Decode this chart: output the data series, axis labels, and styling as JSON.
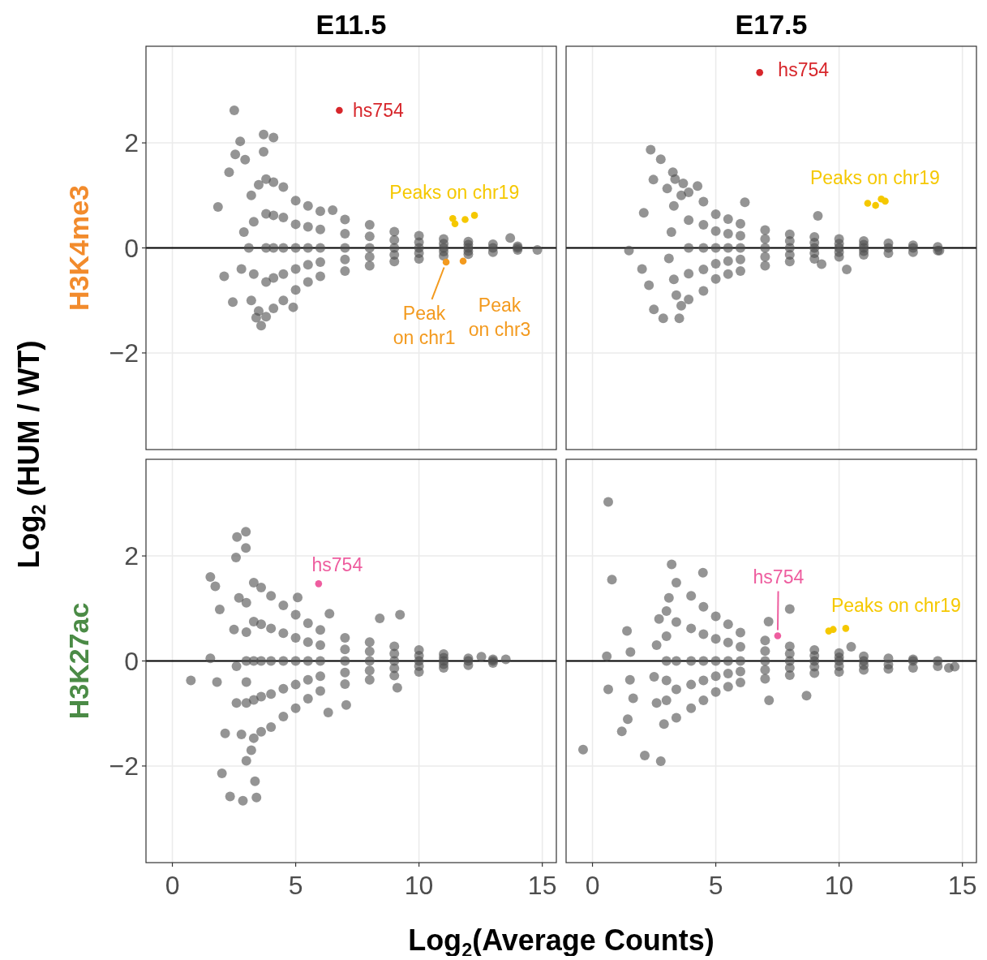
{
  "chart_data": [
    {
      "type": "scatter",
      "title": "E11.5",
      "subtitle": "H3K4me3",
      "ylabel": "Log$_{2}$ (HUM / WT)",
      "xlim": [
        -1.07,
        15.57
      ],
      "ylim": [
        -3.84,
        3.84
      ],
      "xticks": [
        0,
        5,
        10,
        15
      ],
      "yticks": [
        {
          "value": -2,
          "label": "−2"
        },
        0,
        2
      ],
      "grid": true,
      "tick_labels": "y",
      "ref_lines": [
        {
          "axis": "y",
          "value": 0,
          "color": "#000000"
        }
      ],
      "series": [
        {
          "color": "#4d4d4d",
          "x": [
            3.8,
            3.8,
            3.8,
            3.8,
            3.8,
            4.1,
            4.1,
            4.1,
            4.1,
            4.1,
            4.5,
            4.5,
            4.5,
            4.5,
            4.5,
            5,
            5,
            5,
            5,
            5,
            5.5,
            5.5,
            5.5,
            5.5,
            5.5,
            6,
            6,
            6,
            6,
            6,
            7,
            7,
            7,
            7,
            7,
            8,
            8,
            8,
            8,
            8,
            9,
            9,
            9,
            9,
            9,
            10,
            10,
            10,
            10,
            10,
            11,
            11,
            11,
            11,
            11,
            12,
            12,
            12,
            12,
            12,
            13,
            13,
            13,
            14,
            14,
            14,
            3.2,
            3.3,
            3.1,
            3.3,
            3.2,
            3.5,
            3.5,
            2.9,
            2.8,
            2.51,
            3.7,
            4.1,
            2.75,
            2.55,
            2.95,
            3.7,
            1.85,
            2.3,
            2.45,
            2.1,
            3.4,
            3.6,
            4.9,
            6.5,
            13.7,
            14.8
          ],
          "values": [
            1.31,
            0.65,
            0,
            -0.65,
            -1.31,
            1.25,
            0.62,
            0,
            -0.57,
            -1.15,
            1.16,
            0.58,
            0,
            -0.5,
            -1.0,
            0.9,
            0.45,
            0,
            -0.4,
            -0.8,
            0.8,
            0.4,
            0,
            -0.32,
            -0.65,
            0.7,
            0.35,
            0,
            -0.27,
            -0.54,
            0.54,
            0.27,
            0,
            -0.22,
            -0.44,
            0.44,
            0.22,
            0,
            -0.17,
            -0.34,
            0.31,
            0.15,
            0,
            -0.13,
            -0.26,
            0.23,
            0.11,
            0,
            -0.1,
            -0.21,
            0.17,
            0.08,
            0,
            -0.07,
            -0.15,
            0.12,
            0.06,
            0,
            -0.06,
            -0.12,
            0.07,
            0,
            -0.08,
            0.03,
            0,
            -0.04,
            1.0,
            0.5,
            0,
            -0.5,
            -1.0,
            1.2,
            -1.2,
            0.3,
            -0.4,
            2.62,
            2.16,
            2.1,
            2.03,
            1.78,
            1.68,
            1.83,
            0.78,
            1.44,
            -1.03,
            -0.54,
            -1.33,
            -1.48,
            -1.13,
            0.72,
            0.19,
            -0.04
          ]
        },
        {
          "color": "#d7262b",
          "x": [
            6.77
          ],
          "values": [
            2.62
          ]
        },
        {
          "color": "#f5c800",
          "x": [
            11.37,
            11.46,
            11.87,
            12.25
          ],
          "values": [
            0.56,
            0.46,
            0.54,
            0.62
          ]
        },
        {
          "color": "#f39a1e",
          "x": [
            11.1
          ],
          "values": [
            -0.27
          ]
        },
        {
          "color": "#f39a1e",
          "x": [
            11.79
          ],
          "values": [
            -0.25
          ]
        }
      ],
      "annotations": [
        {
          "text": "hs754",
          "x": 6.77,
          "y": 2.62
        },
        {
          "text": "Peaks on chr19",
          "x": 11.37,
          "y": 0.56
        },
        {
          "text": "Peak\non chr1",
          "x": 11.1,
          "y": -0.27
        },
        {
          "text": "Peak\non chr3",
          "x": 11.79,
          "y": -0.25
        }
      ]
    },
    {
      "type": "scatter",
      "title": "E17.5",
      "xlim": [
        -1.07,
        15.57
      ],
      "ylim": [
        -3.84,
        3.84
      ],
      "xticks": [
        0,
        5,
        10,
        15
      ],
      "yticks": [
        -2,
        0,
        2
      ],
      "grid": true,
      "tick_labels": false,
      "ref_lines": [
        {
          "axis": "y",
          "value": 0,
          "color": "#000000"
        }
      ],
      "series": [
        {
          "color": "#4d4d4d",
          "x": [
            3.9,
            3.9,
            3.9,
            3.9,
            3.9,
            4.5,
            4.5,
            4.5,
            4.5,
            4.5,
            5,
            5,
            5,
            5,
            5,
            5.5,
            5.5,
            5.5,
            5.5,
            5.5,
            6,
            6,
            6,
            6,
            6,
            7,
            7,
            7,
            7,
            7,
            8,
            8,
            8,
            8,
            8,
            9,
            9,
            9,
            9,
            9,
            10,
            10,
            10,
            10,
            10,
            11,
            11,
            11,
            11,
            11,
            12,
            12,
            12,
            13,
            13,
            13,
            14,
            14,
            3.3,
            3.2,
            3.1,
            3.3,
            3.4,
            3.6,
            3.6,
            2.36,
            2.77,
            3.26,
            2.47,
            3.35,
            3.03,
            3.68,
            4.26,
            2.08,
            1.48,
            2.01,
            2.29,
            2.49,
            2.87,
            3.52,
            6.18,
            9.14,
            10.31,
            14.07,
            9.29
          ],
          "values": [
            1.06,
            0.53,
            0,
            -0.49,
            -0.98,
            0.88,
            0.44,
            0,
            -0.41,
            -0.82,
            0.64,
            0.32,
            0,
            -0.3,
            -0.59,
            0.55,
            0.27,
            0,
            -0.25,
            -0.5,
            0.46,
            0.23,
            0,
            -0.22,
            -0.44,
            0.34,
            0.17,
            0,
            -0.17,
            -0.34,
            0.26,
            0.13,
            0,
            -0.13,
            -0.26,
            0.21,
            0.1,
            0,
            -0.1,
            -0.21,
            0.17,
            0.08,
            0,
            -0.08,
            -0.17,
            0.13,
            0.06,
            0,
            -0.06,
            -0.13,
            0.09,
            0,
            -0.1,
            0.05,
            0,
            -0.08,
            0.02,
            -0.05,
            0.8,
            0.3,
            -0.2,
            -0.6,
            -0.9,
            1.0,
            -1.1,
            1.87,
            1.69,
            1.44,
            1.3,
            1.31,
            1.13,
            1.23,
            1.18,
            0.67,
            -0.05,
            -0.4,
            -0.71,
            -1.17,
            -1.34,
            -1.34,
            0.87,
            0.61,
            -0.41,
            -0.05,
            -0.31
          ]
        },
        {
          "color": "#d7262b",
          "x": [
            6.78
          ],
          "values": [
            3.34
          ]
        },
        {
          "color": "#f5c800",
          "x": [
            11.16,
            11.48,
            11.71,
            11.87
          ],
          "values": [
            0.85,
            0.81,
            0.93,
            0.89
          ]
        }
      ],
      "annotations": [
        {
          "text": "hs754",
          "x": 6.78,
          "y": 3.34
        },
        {
          "text": "Peaks on chr19",
          "x": 11.16,
          "y": 0.85
        }
      ]
    },
    {
      "type": "scatter",
      "subtitle": "H3K27ac",
      "xlabel": "Log$_{2}$(Average Counts)",
      "xlim": [
        -1.07,
        15.57
      ],
      "ylim": [
        -3.84,
        3.84
      ],
      "xticks": [
        0,
        5,
        10,
        15
      ],
      "yticks": [
        {
          "value": -2,
          "label": "−2"
        },
        0,
        2
      ],
      "grid": true,
      "ref_lines": [
        {
          "axis": "y",
          "value": 0,
          "color": "#000000"
        }
      ],
      "series": [
        {
          "color": "#4d4d4d",
          "x": [
            3.0,
            3.0,
            3.0,
            3.0,
            3.0,
            3.3,
            3.3,
            3.3,
            3.3,
            3.3,
            3.6,
            3.6,
            3.6,
            3.6,
            3.6,
            4,
            4,
            4,
            4,
            4,
            4.5,
            4.5,
            4.5,
            4.5,
            4.5,
            5,
            5,
            5,
            5,
            5,
            5.5,
            5.5,
            5.5,
            5.5,
            5.5,
            6,
            6,
            6,
            6,
            6,
            7,
            7,
            7,
            7,
            7,
            8,
            8,
            8,
            8,
            8,
            9,
            9,
            9,
            9,
            9,
            10,
            10,
            10,
            10,
            10,
            11,
            11,
            11,
            11,
            11,
            12,
            12,
            12,
            13,
            13,
            13,
            2.7,
            2.5,
            2.6,
            2.6,
            2.8,
            3.0,
            3.2,
            2.98,
            2.62,
            2.98,
            2.58,
            1.54,
            1.74,
            1.92,
            5.08,
            6.37,
            8.41,
            9.23,
            0.75,
            1.54,
            1.81,
            2.01,
            2.34,
            2.86,
            3.41,
            3.35,
            2.14,
            7.05,
            6.32,
            9.12,
            13.52,
            12.53
          ],
          "values": [
            1.11,
            0.55,
            0,
            -0.4,
            -0.8,
            1.49,
            0.75,
            0,
            -0.74,
            -1.47,
            1.4,
            0.7,
            0,
            -0.68,
            -1.35,
            1.24,
            0.62,
            0,
            -0.63,
            -1.26,
            1.06,
            0.53,
            0,
            -0.53,
            -1.06,
            0.88,
            0.44,
            0,
            -0.45,
            -0.9,
            0.72,
            0.36,
            0,
            -0.36,
            -0.72,
            0.59,
            0.3,
            0,
            -0.29,
            -0.57,
            0.44,
            0.22,
            0,
            -0.22,
            -0.44,
            0.36,
            0.18,
            0,
            -0.18,
            -0.36,
            0.28,
            0.14,
            0,
            -0.14,
            -0.28,
            0.21,
            0.1,
            0,
            -0.1,
            -0.21,
            0.13,
            0.06,
            0,
            -0.06,
            -0.13,
            0.05,
            0,
            -0.08,
            0.03,
            0,
            -0.04,
            1.2,
            0.6,
            -0.1,
            -0.8,
            -1.4,
            -1.9,
            -1.7,
            2.46,
            2.36,
            2.15,
            1.97,
            1.6,
            1.42,
            0.98,
            1.21,
            0.9,
            0.81,
            0.88,
            -0.37,
            0.05,
            -0.4,
            -2.14,
            -2.58,
            -2.66,
            -2.6,
            -2.29,
            -1.38,
            -0.84,
            -0.98,
            -0.51,
            0.03,
            0.08
          ]
        },
        {
          "color": "#ee5d9f",
          "x": [
            5.93
          ],
          "values": [
            1.47
          ]
        }
      ],
      "annotations": [
        {
          "text": "hs754",
          "x": 5.93,
          "y": 1.47
        }
      ]
    },
    {
      "type": "scatter",
      "xlim": [
        -1.07,
        15.57
      ],
      "ylim": [
        -3.84,
        3.84
      ],
      "xticks": [
        0,
        5,
        10,
        15
      ],
      "yticks": [
        -2,
        0,
        2
      ],
      "grid": true,
      "tick_labels": "x",
      "ref_lines": [
        {
          "axis": "y",
          "value": 0,
          "color": "#000000"
        }
      ],
      "series": [
        {
          "color": "#4d4d4d",
          "x": [
            3.0,
            3.0,
            3.0,
            3.0,
            3.0,
            3.4,
            3.4,
            3.4,
            3.4,
            3.4,
            4,
            4,
            4,
            4,
            4,
            4.5,
            4.5,
            4.5,
            4.5,
            4.5,
            5,
            5,
            5,
            5,
            5,
            5.5,
            5.5,
            5.5,
            5.5,
            5.5,
            6,
            6,
            6,
            6,
            6,
            7,
            7,
            7,
            7,
            7,
            8,
            8,
            8,
            8,
            8,
            9,
            9,
            9,
            9,
            9,
            10,
            10,
            10,
            10,
            10,
            11,
            11,
            11,
            11,
            12,
            12,
            12,
            13,
            13,
            13,
            14,
            14,
            2.7,
            2.6,
            2.5,
            2.6,
            2.9,
            3.1,
            0.64,
            0.79,
            -0.38,
            0.64,
            0.58,
            1.4,
            1.54,
            1.52,
            1.65,
            1.43,
            1.19,
            2.12,
            2.77,
            3.21,
            4.48,
            8.0,
            7.14,
            7.16,
            8.68,
            10.49,
            14.69,
            14.45
          ],
          "values": [
            0.95,
            0.47,
            0,
            -0.37,
            -0.75,
            1.49,
            0.74,
            0,
            -0.54,
            -1.08,
            1.24,
            0.62,
            0,
            -0.45,
            -0.9,
            1.03,
            0.51,
            0,
            -0.37,
            -0.75,
            0.85,
            0.42,
            0,
            -0.29,
            -0.59,
            0.7,
            0.35,
            0,
            -0.24,
            -0.49,
            0.54,
            0.27,
            0,
            -0.2,
            -0.41,
            0.39,
            0.19,
            0,
            -0.17,
            -0.34,
            0.28,
            0.14,
            0,
            -0.13,
            -0.27,
            0.21,
            0.1,
            0,
            -0.11,
            -0.23,
            0.15,
            0.07,
            0,
            -0.1,
            -0.21,
            0.09,
            0,
            -0.08,
            -0.17,
            0.05,
            -0.07,
            -0.15,
            0.03,
            0,
            -0.13,
            0,
            -0.1,
            0.8,
            0.3,
            -0.3,
            -0.8,
            -1.2,
            1.2,
            3.03,
            1.55,
            -1.69,
            -0.54,
            0.09,
            0.57,
            0.17,
            -0.36,
            -0.71,
            -1.11,
            -1.34,
            -1.8,
            -1.91,
            1.84,
            1.68,
            0.99,
            0.75,
            -0.75,
            -0.66,
            0.27,
            -0.11,
            -0.13
          ]
        },
        {
          "color": "#ee5d9f",
          "x": [
            7.51
          ],
          "values": [
            0.48
          ]
        },
        {
          "color": "#f5c800",
          "x": [
            9.58,
            9.76,
            10.27
          ],
          "values": [
            0.57,
            0.6,
            0.62
          ]
        }
      ],
      "annotations": [
        {
          "text": "hs754",
          "x": 7.51,
          "y": 0.48
        },
        {
          "text": "Peaks on chr19",
          "x": 9.58,
          "y": 0.57
        }
      ]
    }
  ]
}
